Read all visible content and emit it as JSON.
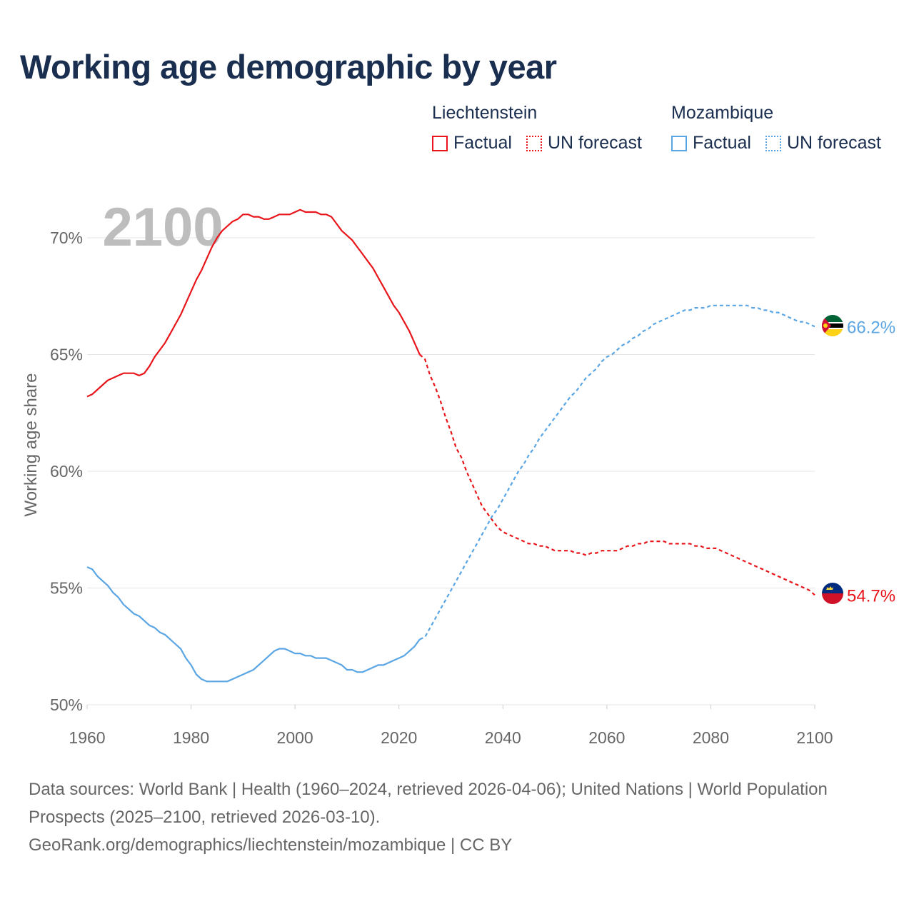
{
  "title": "Working age demographic by year",
  "legend": {
    "groups": [
      {
        "name": "Liechtenstein",
        "factual_label": "Factual",
        "forecast_label": "UN forecast",
        "color": "#e8151b"
      },
      {
        "name": "Mozambique",
        "factual_label": "Factual",
        "forecast_label": "UN forecast",
        "color": "#5aa5e3"
      }
    ]
  },
  "year_watermark": "2100",
  "footer": {
    "line1": "Data sources: World Bank | Health (1960–2024, retrieved 2026-04-06); United Nations | World Population Prospects (2025–2100, retrieved 2026-03-10).",
    "line2": "GeoRank.org/demographics/liechtenstein/mozambique | CC BY"
  },
  "chart_data": {
    "type": "line",
    "title": "Working age demographic by year",
    "ylabel": "Working age share",
    "xlabel": "",
    "xlim": [
      1960,
      2100
    ],
    "ylim": [
      50,
      72
    ],
    "x_ticks": [
      1960,
      1980,
      2000,
      2020,
      2040,
      2060,
      2080,
      2100
    ],
    "x_tick_labels": [
      "1960",
      "1980",
      "2000",
      "2020",
      "2040",
      "2060",
      "2080",
      "2100"
    ],
    "y_ticks": [
      50,
      55,
      60,
      65,
      70
    ],
    "y_tick_labels": [
      "50%",
      "55%",
      "60%",
      "65%",
      "70%"
    ],
    "factual_end_year": 2024,
    "series": [
      {
        "name": "Liechtenstein",
        "color": "#e8151b",
        "end_label": "54.7%",
        "flag": "liechtenstein-flag",
        "points": [
          [
            1960,
            63.2
          ],
          [
            1961,
            63.3
          ],
          [
            1962,
            63.5
          ],
          [
            1963,
            63.7
          ],
          [
            1964,
            63.9
          ],
          [
            1965,
            64.0
          ],
          [
            1966,
            64.1
          ],
          [
            1967,
            64.2
          ],
          [
            1968,
            64.2
          ],
          [
            1969,
            64.2
          ],
          [
            1970,
            64.1
          ],
          [
            1971,
            64.2
          ],
          [
            1972,
            64.5
          ],
          [
            1973,
            64.9
          ],
          [
            1974,
            65.2
          ],
          [
            1975,
            65.5
          ],
          [
            1976,
            65.9
          ],
          [
            1977,
            66.3
          ],
          [
            1978,
            66.7
          ],
          [
            1979,
            67.2
          ],
          [
            1980,
            67.7
          ],
          [
            1981,
            68.2
          ],
          [
            1982,
            68.6
          ],
          [
            1983,
            69.1
          ],
          [
            1984,
            69.6
          ],
          [
            1985,
            70.0
          ],
          [
            1986,
            70.3
          ],
          [
            1987,
            70.5
          ],
          [
            1988,
            70.7
          ],
          [
            1989,
            70.8
          ],
          [
            1990,
            71.0
          ],
          [
            1991,
            71.0
          ],
          [
            1992,
            70.9
          ],
          [
            1993,
            70.9
          ],
          [
            1994,
            70.8
          ],
          [
            1995,
            70.8
          ],
          [
            1996,
            70.9
          ],
          [
            1997,
            71.0
          ],
          [
            1998,
            71.0
          ],
          [
            1999,
            71.0
          ],
          [
            2000,
            71.1
          ],
          [
            2001,
            71.2
          ],
          [
            2002,
            71.1
          ],
          [
            2003,
            71.1
          ],
          [
            2004,
            71.1
          ],
          [
            2005,
            71.0
          ],
          [
            2006,
            71.0
          ],
          [
            2007,
            70.9
          ],
          [
            2008,
            70.6
          ],
          [
            2009,
            70.3
          ],
          [
            2010,
            70.1
          ],
          [
            2011,
            69.9
          ],
          [
            2012,
            69.6
          ],
          [
            2013,
            69.3
          ],
          [
            2014,
            69.0
          ],
          [
            2015,
            68.7
          ],
          [
            2016,
            68.3
          ],
          [
            2017,
            67.9
          ],
          [
            2018,
            67.5
          ],
          [
            2019,
            67.1
          ],
          [
            2020,
            66.8
          ],
          [
            2021,
            66.4
          ],
          [
            2022,
            66.0
          ],
          [
            2023,
            65.5
          ],
          [
            2024,
            65.0
          ],
          [
            2025,
            64.8
          ],
          [
            2026,
            64.1
          ],
          [
            2027,
            63.6
          ],
          [
            2028,
            63.0
          ],
          [
            2029,
            62.3
          ],
          [
            2030,
            61.7
          ],
          [
            2031,
            61.0
          ],
          [
            2032,
            60.6
          ],
          [
            2033,
            60.0
          ],
          [
            2034,
            59.5
          ],
          [
            2035,
            59.0
          ],
          [
            2036,
            58.5
          ],
          [
            2037,
            58.2
          ],
          [
            2038,
            57.9
          ],
          [
            2039,
            57.6
          ],
          [
            2040,
            57.4
          ],
          [
            2041,
            57.3
          ],
          [
            2042,
            57.2
          ],
          [
            2043,
            57.1
          ],
          [
            2044,
            57.0
          ],
          [
            2045,
            56.9
          ],
          [
            2046,
            56.9
          ],
          [
            2047,
            56.8
          ],
          [
            2048,
            56.8
          ],
          [
            2049,
            56.7
          ],
          [
            2050,
            56.6
          ],
          [
            2051,
            56.6
          ],
          [
            2052,
            56.6
          ],
          [
            2053,
            56.6
          ],
          [
            2054,
            56.5
          ],
          [
            2055,
            56.5
          ],
          [
            2056,
            56.4
          ],
          [
            2057,
            56.5
          ],
          [
            2058,
            56.5
          ],
          [
            2059,
            56.6
          ],
          [
            2060,
            56.6
          ],
          [
            2061,
            56.6
          ],
          [
            2062,
            56.6
          ],
          [
            2063,
            56.7
          ],
          [
            2064,
            56.8
          ],
          [
            2065,
            56.8
          ],
          [
            2066,
            56.9
          ],
          [
            2067,
            56.9
          ],
          [
            2068,
            57.0
          ],
          [
            2069,
            57.0
          ],
          [
            2070,
            57.0
          ],
          [
            2071,
            57.0
          ],
          [
            2072,
            56.9
          ],
          [
            2073,
            56.9
          ],
          [
            2074,
            56.9
          ],
          [
            2075,
            56.9
          ],
          [
            2076,
            56.9
          ],
          [
            2077,
            56.8
          ],
          [
            2078,
            56.8
          ],
          [
            2079,
            56.7
          ],
          [
            2080,
            56.7
          ],
          [
            2081,
            56.7
          ],
          [
            2082,
            56.6
          ],
          [
            2083,
            56.5
          ],
          [
            2084,
            56.4
          ],
          [
            2085,
            56.3
          ],
          [
            2086,
            56.2
          ],
          [
            2087,
            56.1
          ],
          [
            2088,
            56.0
          ],
          [
            2089,
            55.9
          ],
          [
            2090,
            55.8
          ],
          [
            2091,
            55.7
          ],
          [
            2092,
            55.6
          ],
          [
            2093,
            55.5
          ],
          [
            2094,
            55.4
          ],
          [
            2095,
            55.3
          ],
          [
            2096,
            55.2
          ],
          [
            2097,
            55.1
          ],
          [
            2098,
            55.0
          ],
          [
            2099,
            54.9
          ],
          [
            2100,
            54.7
          ]
        ]
      },
      {
        "name": "Mozambique",
        "color": "#5aa5e3",
        "end_label": "66.2%",
        "flag": "mozambique-flag",
        "points": [
          [
            1960,
            55.9
          ],
          [
            1961,
            55.8
          ],
          [
            1962,
            55.5
          ],
          [
            1963,
            55.3
          ],
          [
            1964,
            55.1
          ],
          [
            1965,
            54.8
          ],
          [
            1966,
            54.6
          ],
          [
            1967,
            54.3
          ],
          [
            1968,
            54.1
          ],
          [
            1969,
            53.9
          ],
          [
            1970,
            53.8
          ],
          [
            1971,
            53.6
          ],
          [
            1972,
            53.4
          ],
          [
            1973,
            53.3
          ],
          [
            1974,
            53.1
          ],
          [
            1975,
            53.0
          ],
          [
            1976,
            52.8
          ],
          [
            1977,
            52.6
          ],
          [
            1978,
            52.4
          ],
          [
            1979,
            52.0
          ],
          [
            1980,
            51.7
          ],
          [
            1981,
            51.3
          ],
          [
            1982,
            51.1
          ],
          [
            1983,
            51.0
          ],
          [
            1984,
            51.0
          ],
          [
            1985,
            51.0
          ],
          [
            1986,
            51.0
          ],
          [
            1987,
            51.0
          ],
          [
            1988,
            51.1
          ],
          [
            1989,
            51.2
          ],
          [
            1990,
            51.3
          ],
          [
            1991,
            51.4
          ],
          [
            1992,
            51.5
          ],
          [
            1993,
            51.7
          ],
          [
            1994,
            51.9
          ],
          [
            1995,
            52.1
          ],
          [
            1996,
            52.3
          ],
          [
            1997,
            52.4
          ],
          [
            1998,
            52.4
          ],
          [
            1999,
            52.3
          ],
          [
            2000,
            52.2
          ],
          [
            2001,
            52.2
          ],
          [
            2002,
            52.1
          ],
          [
            2003,
            52.1
          ],
          [
            2004,
            52.0
          ],
          [
            2005,
            52.0
          ],
          [
            2006,
            52.0
          ],
          [
            2007,
            51.9
          ],
          [
            2008,
            51.8
          ],
          [
            2009,
            51.7
          ],
          [
            2010,
            51.5
          ],
          [
            2011,
            51.5
          ],
          [
            2012,
            51.4
          ],
          [
            2013,
            51.4
          ],
          [
            2014,
            51.5
          ],
          [
            2015,
            51.6
          ],
          [
            2016,
            51.7
          ],
          [
            2017,
            51.7
          ],
          [
            2018,
            51.8
          ],
          [
            2019,
            51.9
          ],
          [
            2020,
            52.0
          ],
          [
            2021,
            52.1
          ],
          [
            2022,
            52.3
          ],
          [
            2023,
            52.5
          ],
          [
            2024,
            52.8
          ],
          [
            2025,
            52.9
          ],
          [
            2026,
            53.3
          ],
          [
            2027,
            53.7
          ],
          [
            2028,
            54.1
          ],
          [
            2029,
            54.5
          ],
          [
            2030,
            54.9
          ],
          [
            2031,
            55.3
          ],
          [
            2032,
            55.7
          ],
          [
            2033,
            56.1
          ],
          [
            2034,
            56.5
          ],
          [
            2035,
            56.9
          ],
          [
            2036,
            57.3
          ],
          [
            2037,
            57.7
          ],
          [
            2038,
            58.1
          ],
          [
            2039,
            58.4
          ],
          [
            2040,
            58.8
          ],
          [
            2041,
            59.2
          ],
          [
            2042,
            59.6
          ],
          [
            2043,
            60.0
          ],
          [
            2044,
            60.3
          ],
          [
            2045,
            60.7
          ],
          [
            2046,
            61.0
          ],
          [
            2047,
            61.4
          ],
          [
            2048,
            61.7
          ],
          [
            2049,
            62.0
          ],
          [
            2050,
            62.3
          ],
          [
            2051,
            62.6
          ],
          [
            2052,
            62.9
          ],
          [
            2053,
            63.2
          ],
          [
            2054,
            63.4
          ],
          [
            2055,
            63.7
          ],
          [
            2056,
            64.0
          ],
          [
            2057,
            64.2
          ],
          [
            2058,
            64.4
          ],
          [
            2059,
            64.7
          ],
          [
            2060,
            64.9
          ],
          [
            2061,
            65.0
          ],
          [
            2062,
            65.2
          ],
          [
            2063,
            65.4
          ],
          [
            2064,
            65.5
          ],
          [
            2065,
            65.7
          ],
          [
            2066,
            65.8
          ],
          [
            2067,
            66.0
          ],
          [
            2068,
            66.1
          ],
          [
            2069,
            66.3
          ],
          [
            2070,
            66.4
          ],
          [
            2071,
            66.5
          ],
          [
            2072,
            66.6
          ],
          [
            2073,
            66.7
          ],
          [
            2074,
            66.8
          ],
          [
            2075,
            66.9
          ],
          [
            2076,
            66.9
          ],
          [
            2077,
            67.0
          ],
          [
            2078,
            67.0
          ],
          [
            2079,
            67.0
          ],
          [
            2080,
            67.1
          ],
          [
            2081,
            67.1
          ],
          [
            2082,
            67.1
          ],
          [
            2083,
            67.1
          ],
          [
            2084,
            67.1
          ],
          [
            2085,
            67.1
          ],
          [
            2086,
            67.1
          ],
          [
            2087,
            67.1
          ],
          [
            2088,
            67.0
          ],
          [
            2089,
            67.0
          ],
          [
            2090,
            66.9
          ],
          [
            2091,
            66.9
          ],
          [
            2092,
            66.8
          ],
          [
            2093,
            66.8
          ],
          [
            2094,
            66.7
          ],
          [
            2095,
            66.6
          ],
          [
            2096,
            66.5
          ],
          [
            2097,
            66.4
          ],
          [
            2098,
            66.4
          ],
          [
            2099,
            66.3
          ],
          [
            2100,
            66.2
          ]
        ]
      }
    ]
  }
}
